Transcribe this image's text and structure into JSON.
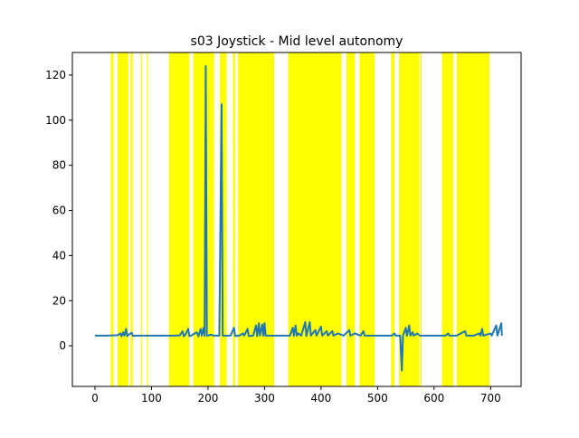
{
  "chart_data": {
    "type": "line",
    "title": "s03 Joystick - Mid level autonomy",
    "xlabel": "",
    "ylabel": "",
    "xlim": [
      -40,
      754
    ],
    "ylim": [
      -18,
      130
    ],
    "xticks": [
      0,
      100,
      200,
      300,
      400,
      500,
      600,
      700
    ],
    "yticks": [
      0,
      20,
      40,
      60,
      80,
      100,
      120
    ],
    "grid": false,
    "colors": {
      "line": "#1f77b4",
      "highlight": "#ffff00",
      "axes": "#000000",
      "background": "#ffffff"
    },
    "highlight_spans": [
      [
        28,
        33
      ],
      [
        40,
        59
      ],
      [
        63,
        67
      ],
      [
        81,
        83
      ],
      [
        92,
        94
      ],
      [
        131,
        167
      ],
      [
        174,
        211
      ],
      [
        221,
        233
      ],
      [
        244,
        248
      ],
      [
        253,
        317
      ],
      [
        342,
        436
      ],
      [
        445,
        460
      ],
      [
        468,
        495
      ],
      [
        524,
        530
      ],
      [
        538,
        574
      ],
      [
        576,
        578
      ],
      [
        614,
        634
      ],
      [
        640,
        698
      ]
    ],
    "series": [
      {
        "points": [
          [
            0,
            4.5
          ],
          [
            20,
            4.5
          ],
          [
            40,
            4.7
          ],
          [
            45,
            5.5
          ],
          [
            47,
            4.2
          ],
          [
            50,
            6.0
          ],
          [
            52,
            4.5
          ],
          [
            55,
            7.5
          ],
          [
            57,
            4.3
          ],
          [
            60,
            5.0
          ],
          [
            65,
            5.8
          ],
          [
            67,
            4.4
          ],
          [
            80,
            4.5
          ],
          [
            100,
            4.5
          ],
          [
            120,
            4.5
          ],
          [
            140,
            4.5
          ],
          [
            150,
            4.6
          ],
          [
            155,
            6.5
          ],
          [
            157,
            4.2
          ],
          [
            160,
            5.0
          ],
          [
            165,
            7.5
          ],
          [
            167,
            4.3
          ],
          [
            170,
            4.5
          ],
          [
            180,
            6.0
          ],
          [
            183,
            4.2
          ],
          [
            187,
            7.5
          ],
          [
            189,
            4.5
          ],
          [
            192,
            8.0
          ],
          [
            194,
            4.4
          ],
          [
            196,
            124
          ],
          [
            198,
            4.5
          ],
          [
            200,
            4.5
          ],
          [
            205,
            5.0
          ],
          [
            210,
            4.5
          ],
          [
            220,
            4.5
          ],
          [
            224,
            107
          ],
          [
            226,
            4.5
          ],
          [
            230,
            4.5
          ],
          [
            240,
            4.5
          ],
          [
            246,
            8.0
          ],
          [
            248,
            4.3
          ],
          [
            255,
            4.5
          ],
          [
            262,
            5.5
          ],
          [
            264,
            4.5
          ],
          [
            270,
            7.5
          ],
          [
            272,
            4.3
          ],
          [
            280,
            4.5
          ],
          [
            285,
            9.0
          ],
          [
            287,
            4.3
          ],
          [
            290,
            10.0
          ],
          [
            292,
            4.5
          ],
          [
            296,
            9.5
          ],
          [
            298,
            4.4
          ],
          [
            300,
            10.0
          ],
          [
            302,
            4.5
          ],
          [
            310,
            4.5
          ],
          [
            320,
            4.5
          ],
          [
            330,
            4.5
          ],
          [
            345,
            4.5
          ],
          [
            350,
            8.0
          ],
          [
            352,
            4.4
          ],
          [
            355,
            9.0
          ],
          [
            357,
            4.5
          ],
          [
            360,
            5.5
          ],
          [
            365,
            4.5
          ],
          [
            372,
            10.5
          ],
          [
            374,
            4.3
          ],
          [
            380,
            10.5
          ],
          [
            382,
            4.5
          ],
          [
            390,
            7.0
          ],
          [
            392,
            4.5
          ],
          [
            400,
            8.5
          ],
          [
            402,
            4.5
          ],
          [
            410,
            6.5
          ],
          [
            412,
            4.5
          ],
          [
            420,
            6.5
          ],
          [
            422,
            4.5
          ],
          [
            430,
            5.5
          ],
          [
            440,
            4.5
          ],
          [
            450,
            7.0
          ],
          [
            452,
            4.5
          ],
          [
            460,
            5.5
          ],
          [
            470,
            4.5
          ],
          [
            475,
            6.5
          ],
          [
            477,
            4.5
          ],
          [
            490,
            4.5
          ],
          [
            500,
            4.5
          ],
          [
            510,
            4.5
          ],
          [
            525,
            4.5
          ],
          [
            530,
            5.5
          ],
          [
            532,
            4.5
          ],
          [
            540,
            4.5
          ],
          [
            543,
            -11
          ],
          [
            545,
            4.5
          ],
          [
            550,
            8.0
          ],
          [
            552,
            4.4
          ],
          [
            556,
            9.0
          ],
          [
            558,
            4.5
          ],
          [
            562,
            6.0
          ],
          [
            564,
            4.5
          ],
          [
            570,
            5.5
          ],
          [
            575,
            4.5
          ],
          [
            590,
            4.5
          ],
          [
            600,
            4.5
          ],
          [
            620,
            4.5
          ],
          [
            625,
            5.5
          ],
          [
            627,
            4.5
          ],
          [
            640,
            4.5
          ],
          [
            655,
            6.5
          ],
          [
            657,
            4.5
          ],
          [
            670,
            4.5
          ],
          [
            680,
            5.5
          ],
          [
            682,
            4.5
          ],
          [
            685,
            7.5
          ],
          [
            687,
            4.5
          ],
          [
            700,
            5.5
          ],
          [
            702,
            4.5
          ],
          [
            710,
            9.0
          ],
          [
            712,
            4.5
          ],
          [
            719,
            10.0
          ],
          [
            720,
            4.5
          ]
        ]
      }
    ]
  }
}
